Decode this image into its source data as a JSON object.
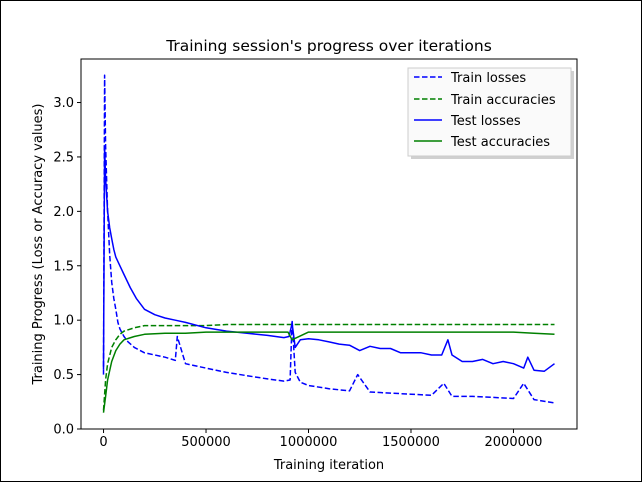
{
  "chart_data": {
    "type": "line",
    "title": "Training session's progress over iterations",
    "xlabel": "Training iteration",
    "ylabel": "Training Progress (Loss or Accuracy values)",
    "xlim": [
      -110000,
      2310000
    ],
    "ylim": [
      0.0,
      3.4
    ],
    "xticks": [
      0,
      500000,
      1000000,
      1500000,
      2000000
    ],
    "xtick_labels": [
      "0",
      "500000",
      "1000000",
      "1500000",
      "2000000"
    ],
    "yticks": [
      0.0,
      0.5,
      1.0,
      1.5,
      2.0,
      2.5,
      3.0
    ],
    "ytick_labels": [
      "0.0",
      "0.5",
      "1.0",
      "1.5",
      "2.0",
      "2.5",
      "3.0"
    ],
    "grid": false,
    "legend_position": "top-right",
    "series": [
      {
        "name": "Train losses",
        "color": "#0000ff",
        "style": "dashed",
        "x": [
          0,
          5000,
          10000,
          20000,
          30000,
          40000,
          50000,
          60000,
          70000,
          80000,
          100000,
          120000,
          150000,
          200000,
          250000,
          300000,
          350000,
          360000,
          400000,
          500000,
          600000,
          700000,
          800000,
          880000,
          910000,
          920000,
          935000,
          960000,
          1000000,
          1100000,
          1200000,
          1240000,
          1300000,
          1400000,
          1500000,
          1600000,
          1660000,
          1700000,
          1800000,
          1900000,
          2000000,
          2050000,
          2100000,
          2200000
        ],
        "y": [
          0.5,
          3.25,
          2.6,
          2.0,
          1.6,
          1.35,
          1.2,
          1.1,
          0.98,
          0.92,
          0.85,
          0.8,
          0.75,
          0.7,
          0.68,
          0.66,
          0.63,
          0.85,
          0.6,
          0.56,
          0.52,
          0.49,
          0.46,
          0.44,
          0.45,
          1.0,
          0.52,
          0.43,
          0.4,
          0.37,
          0.35,
          0.5,
          0.34,
          0.33,
          0.32,
          0.31,
          0.42,
          0.3,
          0.3,
          0.29,
          0.28,
          0.42,
          0.27,
          0.24
        ]
      },
      {
        "name": "Train accuracies",
        "color": "#008000",
        "style": "dashed",
        "x": [
          0,
          10000,
          20000,
          40000,
          60000,
          80000,
          100000,
          150000,
          200000,
          300000,
          400000,
          500000,
          600000,
          700000,
          800000,
          900000,
          1000000,
          1200000,
          1400000,
          1600000,
          1800000,
          2000000,
          2100000,
          2200000
        ],
        "y": [
          0.17,
          0.45,
          0.6,
          0.75,
          0.82,
          0.87,
          0.9,
          0.93,
          0.95,
          0.95,
          0.95,
          0.95,
          0.96,
          0.96,
          0.96,
          0.96,
          0.96,
          0.96,
          0.96,
          0.96,
          0.96,
          0.96,
          0.96,
          0.96
        ]
      },
      {
        "name": "Test losses",
        "color": "#0000ff",
        "style": "solid",
        "x": [
          0,
          5000,
          10000,
          20000,
          30000,
          40000,
          50000,
          60000,
          80000,
          100000,
          130000,
          160000,
          200000,
          250000,
          300000,
          350000,
          400000,
          500000,
          600000,
          700000,
          800000,
          880000,
          905000,
          920000,
          935000,
          960000,
          1000000,
          1050000,
          1100000,
          1150000,
          1200000,
          1250000,
          1300000,
          1350000,
          1400000,
          1450000,
          1500000,
          1550000,
          1600000,
          1650000,
          1680000,
          1700000,
          1750000,
          1800000,
          1850000,
          1900000,
          1950000,
          2000000,
          2050000,
          2070000,
          2100000,
          2150000,
          2200000
        ],
        "y": [
          0.55,
          2.6,
          2.3,
          2.0,
          1.85,
          1.75,
          1.65,
          1.58,
          1.5,
          1.42,
          1.3,
          1.2,
          1.1,
          1.05,
          1.02,
          1.0,
          0.98,
          0.93,
          0.9,
          0.88,
          0.86,
          0.84,
          0.85,
          0.97,
          0.75,
          0.82,
          0.83,
          0.82,
          0.8,
          0.78,
          0.77,
          0.72,
          0.76,
          0.74,
          0.74,
          0.7,
          0.7,
          0.7,
          0.68,
          0.68,
          0.82,
          0.68,
          0.62,
          0.62,
          0.64,
          0.6,
          0.62,
          0.6,
          0.56,
          0.66,
          0.54,
          0.53,
          0.6
        ]
      },
      {
        "name": "Test accuracies",
        "color": "#008000",
        "style": "solid",
        "x": [
          0,
          10000,
          20000,
          40000,
          60000,
          80000,
          100000,
          150000,
          200000,
          300000,
          400000,
          500000,
          600000,
          700000,
          800000,
          900000,
          920000,
          1000000,
          1200000,
          1400000,
          1600000,
          1800000,
          2000000,
          2100000,
          2200000
        ],
        "y": [
          0.15,
          0.3,
          0.45,
          0.62,
          0.72,
          0.78,
          0.82,
          0.85,
          0.87,
          0.88,
          0.88,
          0.89,
          0.89,
          0.89,
          0.89,
          0.89,
          0.82,
          0.89,
          0.89,
          0.89,
          0.89,
          0.89,
          0.89,
          0.88,
          0.87
        ]
      }
    ]
  }
}
